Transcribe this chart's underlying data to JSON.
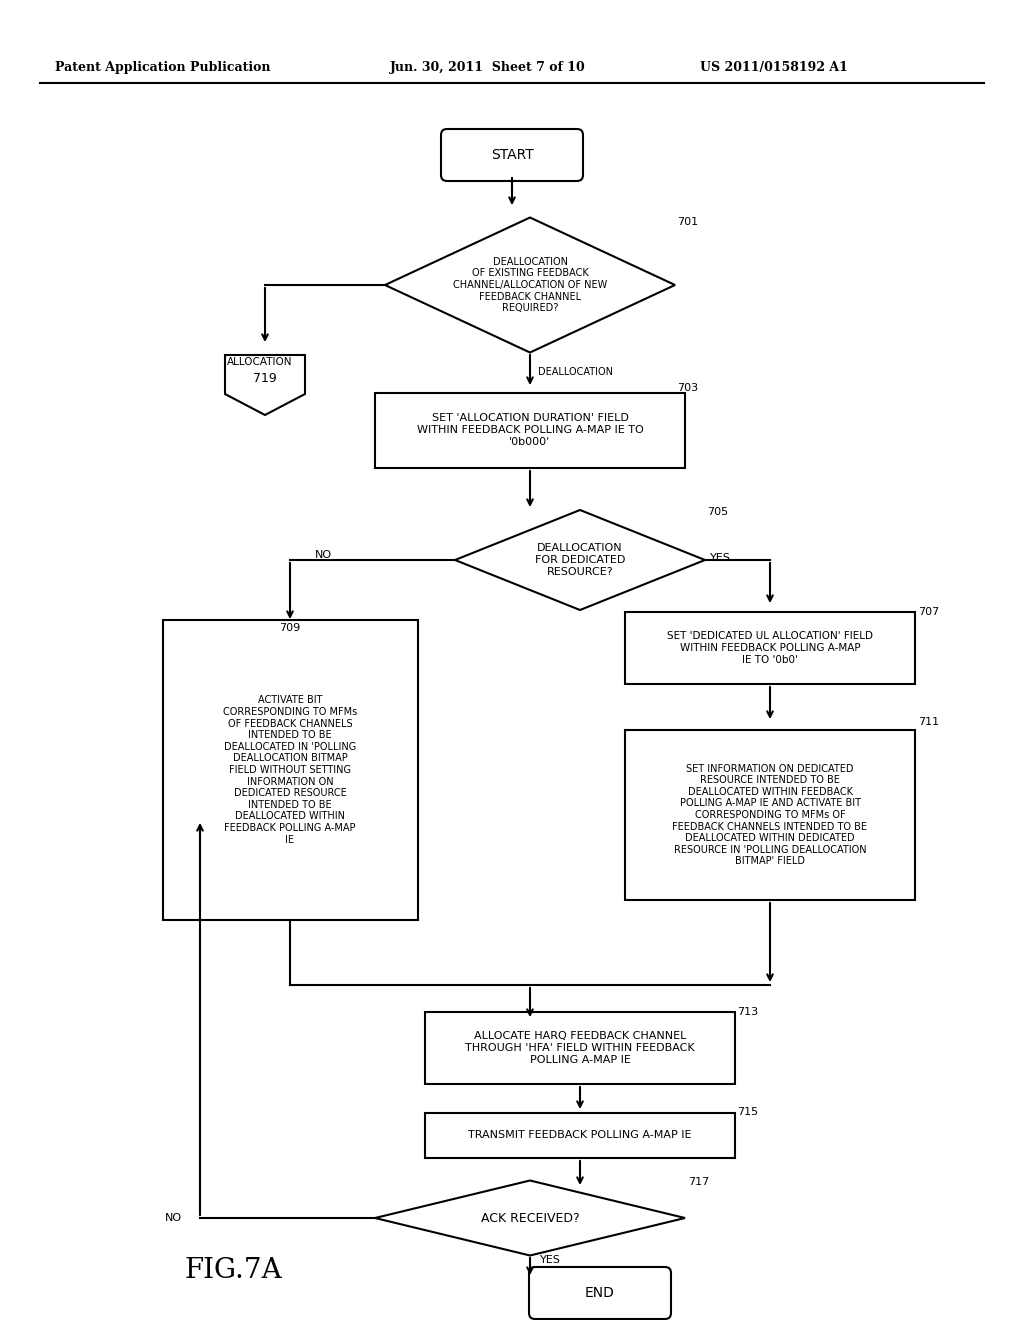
{
  "title_left": "Patent Application Publication",
  "title_mid": "Jun. 30, 2011  Sheet 7 of 10",
  "title_right": "US 2011/0158192 A1",
  "fig_label": "FIG.7A",
  "background": "#ffffff"
}
